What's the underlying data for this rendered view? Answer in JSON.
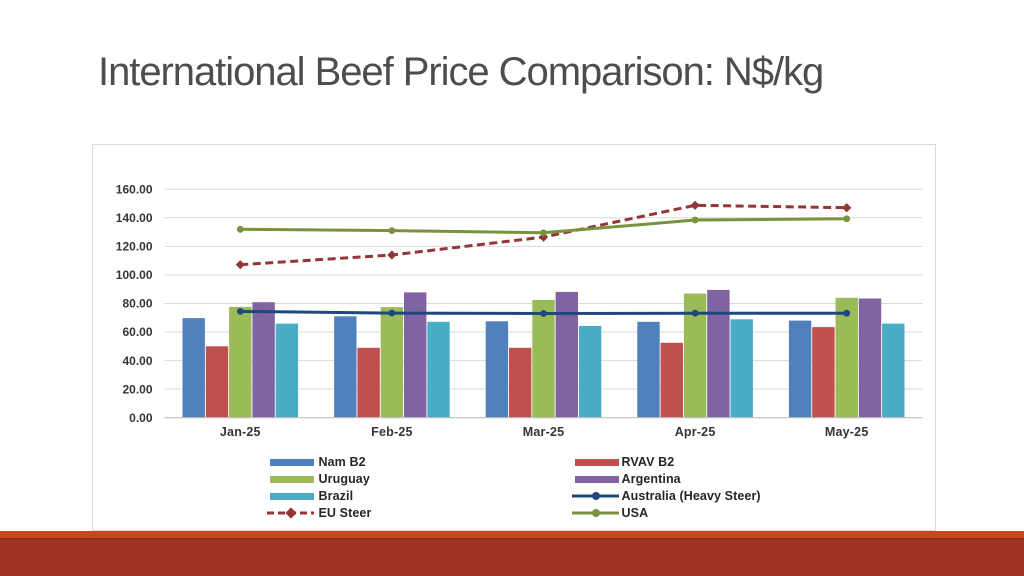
{
  "slide": {
    "title": "International Beef Price Comparison: N$/kg"
  },
  "footer": {
    "accent_strip_color": "#c7481b",
    "divider_color": "#8b2d1e",
    "bar_color": "#a23222"
  },
  "chart_data": {
    "type": "combo-bar-line",
    "title": "",
    "xlabel": "",
    "ylabel": "",
    "categories": [
      "Jan-25",
      "Feb-25",
      "Mar-25",
      "Apr-25",
      "May-25"
    ],
    "ylim": [
      0,
      160
    ],
    "ytick_step": 20,
    "ytick_format": "two-decimals",
    "grid": true,
    "legend_position": "bottom-two-columns",
    "gridline_color": "#d9d9d9",
    "axis_line_color": "#bfbfbf",
    "series": [
      {
        "name": "Nam B2",
        "type": "bar",
        "color": "#4f81bd",
        "values": [
          69.8,
          71.0,
          67.5,
          67.2,
          68.0
        ]
      },
      {
        "name": "RVAV B2",
        "type": "bar",
        "color": "#c0504d",
        "values": [
          50.0,
          49.0,
          49.0,
          52.5,
          63.5
        ]
      },
      {
        "name": "Uruguay",
        "type": "bar",
        "color": "#9bbb59",
        "values": [
          77.6,
          77.5,
          82.5,
          87.0,
          84.0
        ]
      },
      {
        "name": "Argentina",
        "type": "bar",
        "color": "#8064a2",
        "values": [
          80.9,
          87.8,
          88.1,
          89.5,
          83.5
        ]
      },
      {
        "name": "Brazil",
        "type": "bar",
        "color": "#4bacc6",
        "values": [
          65.9,
          67.2,
          64.3,
          68.9,
          65.9
        ]
      },
      {
        "name": "Australia (Heavy Steer)",
        "type": "line",
        "color": "#1f497d",
        "marker": "circle",
        "dashed": false,
        "values": [
          74.5,
          73.3,
          73.0,
          73.2,
          73.2
        ]
      },
      {
        "name": "EU Steer",
        "type": "line",
        "color": "#943634",
        "marker": "diamond",
        "dashed": true,
        "values": [
          107.2,
          114.0,
          126.5,
          148.8,
          147.1
        ]
      },
      {
        "name": "USA",
        "type": "line",
        "color": "#77933c",
        "marker": "circle",
        "dashed": false,
        "values": [
          132.0,
          131.1,
          129.5,
          138.5,
          139.3
        ]
      }
    ]
  }
}
